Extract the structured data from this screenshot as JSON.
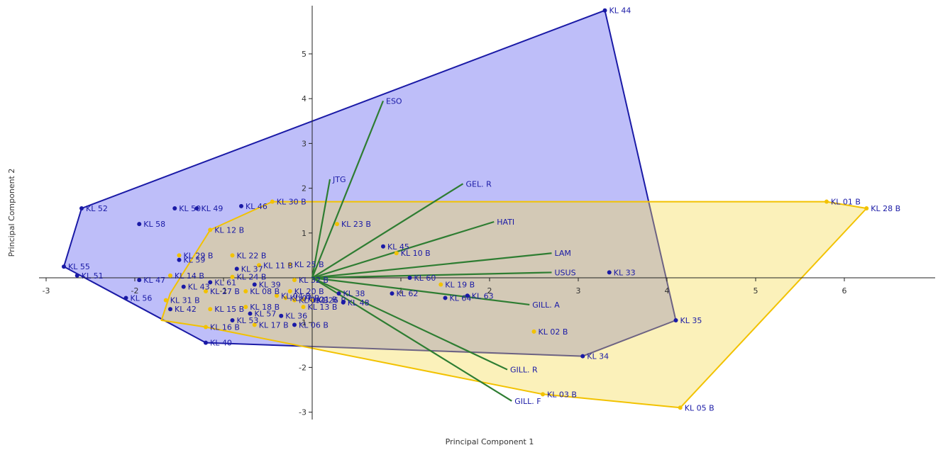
{
  "chart_data": {
    "type": "scatter",
    "title": "",
    "xlabel": "Principal Component 1",
    "ylabel": "Principal Component 2",
    "xlim": [
      -3,
      7
    ],
    "ylim": [
      -3.1,
      6
    ],
    "x_ticks": [
      -3,
      -2,
      -1,
      1,
      2,
      3,
      4,
      5,
      6
    ],
    "y_ticks": [
      -3,
      -2,
      -1,
      1,
      2,
      3,
      4,
      5
    ],
    "colors": {
      "blue_group": "#1a1aa6",
      "blue_fill": "#4444ee",
      "yellow_group": "#f2c200",
      "yellow_fill": "#f5d94a",
      "loading_lines": "#2e7d32",
      "axis": "#222222"
    },
    "hulls": [
      {
        "group": "blue",
        "points": [
          [
            3.3,
            5.97
          ],
          [
            4.1,
            -0.95
          ],
          [
            3.05,
            -1.75
          ],
          [
            -1.2,
            -1.45
          ],
          [
            -2.8,
            0.25
          ],
          [
            -2.6,
            1.55
          ]
        ]
      },
      {
        "group": "yellow",
        "points": [
          [
            -0.45,
            1.7
          ],
          [
            5.8,
            1.7
          ],
          [
            6.25,
            1.55
          ],
          [
            4.15,
            -2.9
          ],
          [
            2.6,
            -2.6
          ],
          [
            -1.2,
            -1.1
          ],
          [
            -1.7,
            -0.95
          ],
          [
            -1.6,
            -0.35
          ],
          [
            -1.15,
            1.07
          ]
        ]
      }
    ],
    "loadings": [
      {
        "label": "ESO",
        "x": 0.8,
        "y": 3.95
      },
      {
        "label": "JTG",
        "x": 0.2,
        "y": 2.2
      },
      {
        "label": "GEL. R",
        "x": 1.7,
        "y": 2.1
      },
      {
        "label": "HATI",
        "x": 2.05,
        "y": 1.25
      },
      {
        "label": "LAM",
        "x": 2.7,
        "y": 0.55
      },
      {
        "label": "USUS",
        "x": 2.7,
        "y": 0.12
      },
      {
        "label": "GILL. A",
        "x": 2.45,
        "y": -0.6
      },
      {
        "label": "GILL. R",
        "x": 2.2,
        "y": -2.05
      },
      {
        "label": "GILL. F",
        "x": 2.25,
        "y": -2.75
      }
    ],
    "series": [
      {
        "group": "blue",
        "points": [
          {
            "label": "KL 44",
            "x": 3.3,
            "y": 5.97
          },
          {
            "label": "KL 35",
            "x": 4.1,
            "y": -0.95
          },
          {
            "label": "KL 34",
            "x": 3.05,
            "y": -1.75
          },
          {
            "label": "KL 33",
            "x": 3.35,
            "y": 0.12
          },
          {
            "label": "KL 52",
            "x": -2.6,
            "y": 1.55
          },
          {
            "label": "KL 55",
            "x": -2.8,
            "y": 0.25
          },
          {
            "label": "KL 51",
            "x": -2.65,
            "y": 0.05
          },
          {
            "label": "KL 50",
            "x": -1.55,
            "y": 1.55
          },
          {
            "label": "KL 49",
            "x": -1.3,
            "y": 1.55
          },
          {
            "label": "KL 58",
            "x": -1.95,
            "y": 1.2
          },
          {
            "label": "KL 46",
            "x": -0.8,
            "y": 1.6
          },
          {
            "label": "KL 47",
            "x": -1.95,
            "y": -0.05
          },
          {
            "label": "KL 56",
            "x": -2.1,
            "y": -0.45
          },
          {
            "label": "KL 42",
            "x": -1.6,
            "y": -0.7
          },
          {
            "label": "KL 43",
            "x": -1.45,
            "y": -0.2
          },
          {
            "label": "KL 59",
            "x": -1.5,
            "y": 0.4
          },
          {
            "label": "KL 37",
            "x": -0.85,
            "y": 0.2
          },
          {
            "label": "KL 61",
            "x": -1.15,
            "y": -0.1
          },
          {
            "label": "KL 39",
            "x": -0.65,
            "y": -0.15
          },
          {
            "label": "KL 53",
            "x": -0.9,
            "y": -0.95
          },
          {
            "label": "KL 57",
            "x": -0.7,
            "y": -0.8
          },
          {
            "label": "KL 36",
            "x": -0.35,
            "y": -0.85
          },
          {
            "label": "KL 40",
            "x": -1.2,
            "y": -1.45
          },
          {
            "label": "KL 45",
            "x": 0.8,
            "y": 0.7
          },
          {
            "label": "KL 60",
            "x": 1.1,
            "y": 0.0
          },
          {
            "label": "KL 62",
            "x": 0.9,
            "y": -0.35
          },
          {
            "label": "KL 64",
            "x": 1.5,
            "y": -0.45
          },
          {
            "label": "KL 63",
            "x": 1.75,
            "y": -0.4
          },
          {
            "label": "KL 48",
            "x": 0.35,
            "y": -0.55
          },
          {
            "label": "KL 38",
            "x": 0.3,
            "y": -0.35
          },
          {
            "label": "KL 06 B",
            "x": -0.2,
            "y": -1.05
          }
        ]
      },
      {
        "group": "yellow",
        "points": [
          {
            "label": "KL 01 B",
            "x": 5.8,
            "y": 1.7
          },
          {
            "label": "KL 28 B",
            "x": 6.25,
            "y": 1.55
          },
          {
            "label": "KL 05 B",
            "x": 4.15,
            "y": -2.9
          },
          {
            "label": "KL 03 B",
            "x": 2.6,
            "y": -2.6
          },
          {
            "label": "KL 02 B",
            "x": 2.5,
            "y": -1.2
          },
          {
            "label": "KL 30 B",
            "x": -0.45,
            "y": 1.7
          },
          {
            "label": "KL 23 B",
            "x": 0.28,
            "y": 1.2
          },
          {
            "label": "KL 12 B",
            "x": -1.15,
            "y": 1.07
          },
          {
            "label": "KL 29 B",
            "x": -1.5,
            "y": 0.5
          },
          {
            "label": "KL 22 B",
            "x": -0.9,
            "y": 0.5
          },
          {
            "label": "KL 25 B",
            "x": -0.25,
            "y": 0.3
          },
          {
            "label": "KL 11 B",
            "x": -0.6,
            "y": 0.28
          },
          {
            "label": "KL 14 B",
            "x": -1.6,
            "y": 0.05
          },
          {
            "label": "KL 24 B",
            "x": -0.9,
            "y": 0.02
          },
          {
            "label": "KL 32 B",
            "x": -0.2,
            "y": -0.05
          },
          {
            "label": "KL 19 B",
            "x": 1.45,
            "y": -0.15
          },
          {
            "label": "KL 10 B",
            "x": 0.95,
            "y": 0.55
          },
          {
            "label": "KL 27 B",
            "x": -1.2,
            "y": -0.3
          },
          {
            "label": "KL 08 B",
            "x": -0.75,
            "y": -0.3
          },
          {
            "label": "KL 20 B",
            "x": -0.25,
            "y": -0.3
          },
          {
            "label": "KL 31 B",
            "x": -1.65,
            "y": -0.5
          },
          {
            "label": "KL 18 B",
            "x": -0.75,
            "y": -0.65
          },
          {
            "label": "KL 15 B",
            "x": -1.15,
            "y": -0.7
          },
          {
            "label": "KL 13 B",
            "x": -0.1,
            "y": -0.65
          },
          {
            "label": "KL 17 B",
            "x": -0.65,
            "y": -1.05
          },
          {
            "label": "KL 16 B",
            "x": -1.2,
            "y": -1.1
          },
          {
            "label": "KL 04 B",
            "x": -0.4,
            "y": -0.4
          },
          {
            "label": "KL 07 B",
            "x": -0.3,
            "y": -0.45
          },
          {
            "label": "KL 09 B",
            "x": -0.2,
            "y": -0.5
          },
          {
            "label": "KL 21 B",
            "x": -0.1,
            "y": -0.48
          },
          {
            "label": "KL 26 B",
            "x": 0.0,
            "y": -0.5
          }
        ]
      }
    ]
  }
}
